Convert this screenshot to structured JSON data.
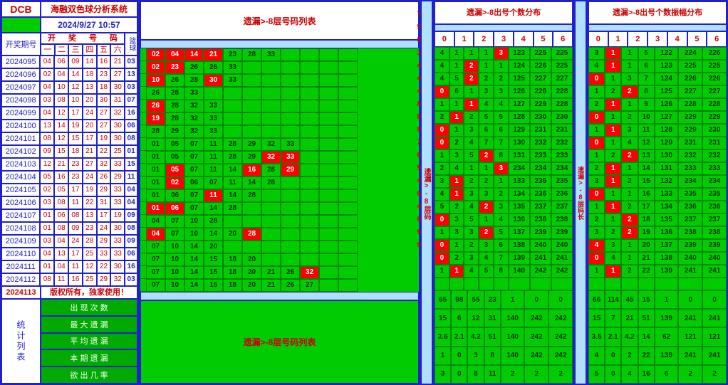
{
  "logo": "DCB",
  "title": "海融双色球分析系统",
  "timestamp": "2024/9/27 10:57",
  "period_label": "开奖期号",
  "red_header": [
    "开",
    "奖",
    "号",
    "码"
  ],
  "red_sub": [
    "一",
    "二",
    "三",
    "四",
    "五",
    "六"
  ],
  "blue_label": "篮球",
  "copyright": "版权所有，独家使用！",
  "stat_label": "统计列表",
  "stat_rows": [
    "出 现 次 数",
    "最 大 遗 漏",
    "平 均 遗 漏",
    "本 期 遗 漏",
    "欲 出 几 率"
  ],
  "main_header": "遗漏>-8层号码列表",
  "main_footer": "遗漏>-8层号码列表",
  "vstrip1": "遗漏>-8层码",
  "vstrip2": "遗漏>-8层码长",
  "cnt1_header": "遗漏>-8出号个数分布",
  "cnt2_header": "遗漏>-8出号个数振幅分布",
  "cnt_cols": [
    "0",
    "1",
    "2",
    "3",
    "4",
    "5",
    "6"
  ],
  "periods": [
    {
      "id": "2024095",
      "red": [
        "04",
        "06",
        "09",
        "14",
        "16",
        "21"
      ],
      "blue": "03"
    },
    {
      "id": "2024096",
      "red": [
        "02",
        "04",
        "14",
        "18",
        "23",
        "27"
      ],
      "blue": "13"
    },
    {
      "id": "2024097",
      "red": [
        "04",
        "10",
        "12",
        "13",
        "18",
        "30"
      ],
      "blue": "03"
    },
    {
      "id": "2024098",
      "red": [
        "03",
        "08",
        "10",
        "20",
        "30",
        "31"
      ],
      "blue": "07"
    },
    {
      "id": "2024099",
      "red": [
        "04",
        "12",
        "17",
        "24",
        "27",
        "32"
      ],
      "blue": "16"
    },
    {
      "id": "2024100",
      "red": [
        "13",
        "14",
        "19",
        "20",
        "27",
        "30"
      ],
      "blue": "06"
    },
    {
      "id": "2024101",
      "red": [
        "08",
        "12",
        "15",
        "17",
        "19",
        "30"
      ],
      "blue": "08"
    },
    {
      "id": "2024102",
      "red": [
        "09",
        "15",
        "18",
        "21",
        "22",
        "25"
      ],
      "blue": "01"
    },
    {
      "id": "2024103",
      "red": [
        "12",
        "21",
        "23",
        "27",
        "32",
        "33"
      ],
      "blue": "15"
    },
    {
      "id": "2024104",
      "red": [
        "05",
        "16",
        "23",
        "24",
        "26",
        "29"
      ],
      "blue": "11"
    },
    {
      "id": "2024105",
      "red": [
        "02",
        "05",
        "17",
        "19",
        "29",
        "33"
      ],
      "blue": "04"
    },
    {
      "id": "2024106",
      "red": [
        "03",
        "08",
        "11",
        "22",
        "31",
        "33"
      ],
      "blue": "04"
    },
    {
      "id": "2024107",
      "red": [
        "01",
        "06",
        "08",
        "13",
        "17",
        "19"
      ],
      "blue": "09"
    },
    {
      "id": "2024108",
      "red": [
        "01",
        "08",
        "09",
        "23",
        "24",
        "30"
      ],
      "blue": "08"
    },
    {
      "id": "2024109",
      "red": [
        "03",
        "04",
        "24",
        "28",
        "29",
        "33"
      ],
      "blue": "09"
    },
    {
      "id": "2024110",
      "red": [
        "04",
        "13",
        "17",
        "25",
        "33",
        "33"
      ],
      "blue": "06"
    },
    {
      "id": "2024111",
      "red": [
        "01",
        "04",
        "11",
        "12",
        "22",
        "30"
      ],
      "blue": "16"
    },
    {
      "id": "2024112",
      "red": [
        "08",
        "11",
        "16",
        "25",
        "29",
        "32"
      ],
      "blue": "03"
    },
    {
      "id": "2024113",
      "red": [
        "",
        "",
        "",
        "",
        "",
        ""
      ],
      "blue": ""
    }
  ],
  "grid_rows": [
    {
      "cells": [
        "02",
        "04",
        "14",
        "21",
        "23",
        "28",
        "33",
        "",
        "",
        "",
        ""
      ],
      "hits": [
        0,
        1,
        2,
        3
      ]
    },
    {
      "cells": [
        "02",
        "23",
        "26",
        "28",
        "33",
        "",
        "",
        "",
        "",
        "",
        ""
      ],
      "hits": [
        0,
        1
      ]
    },
    {
      "cells": [
        "10",
        "26",
        "28",
        "30",
        "33",
        "",
        "",
        "",
        "",
        "",
        ""
      ],
      "hits": [
        0,
        3
      ]
    },
    {
      "cells": [
        "26",
        "28",
        "33",
        "",
        "",
        "",
        "",
        "",
        "",
        "",
        ""
      ],
      "hits": []
    },
    {
      "cells": [
        "26",
        "28",
        "32",
        "33",
        "",
        "",
        "",
        "",
        "",
        "",
        ""
      ],
      "hits": [
        0
      ]
    },
    {
      "cells": [
        "19",
        "28",
        "32",
        "33",
        "",
        "",
        "",
        "",
        "",
        "",
        ""
      ],
      "hits": [
        0
      ]
    },
    {
      "cells": [
        "28",
        "29",
        "32",
        "33",
        "",
        "",
        "",
        "",
        "",
        "",
        ""
      ],
      "hits": []
    },
    {
      "cells": [
        "01",
        "05",
        "07",
        "11",
        "28",
        "29",
        "32",
        "33",
        "",
        "",
        ""
      ],
      "hits": []
    },
    {
      "cells": [
        "01",
        "05",
        "07",
        "11",
        "28",
        "29",
        "32",
        "33",
        "",
        "",
        ""
      ],
      "hits": [
        6,
        7
      ]
    },
    {
      "cells": [
        "01",
        "05",
        "07",
        "11",
        "14",
        "16",
        "28",
        "29",
        "",
        "",
        ""
      ],
      "hits": [
        1,
        5,
        7
      ]
    },
    {
      "cells": [
        "01",
        "02",
        "06",
        "07",
        "11",
        "14",
        "28",
        "",
        "",
        "",
        ""
      ],
      "hits": [
        1
      ]
    },
    {
      "cells": [
        "01",
        "06",
        "07",
        "11",
        "14",
        "28",
        "",
        "",
        "",
        "",
        ""
      ],
      "hits": [
        3
      ]
    },
    {
      "cells": [
        "01",
        "06",
        "07",
        "14",
        "28",
        "",
        "",
        "",
        "",
        "",
        ""
      ],
      "hits": [
        0,
        1
      ]
    },
    {
      "cells": [
        "04",
        "07",
        "10",
        "28",
        "",
        "",
        "",
        "",
        "",
        "",
        ""
      ],
      "hits": []
    },
    {
      "cells": [
        "04",
        "07",
        "10",
        "14",
        "20",
        "28",
        "",
        "",
        "",
        "",
        ""
      ],
      "hits": [
        0,
        5
      ]
    },
    {
      "cells": [
        "07",
        "10",
        "14",
        "20",
        "",
        "",
        "",
        "",
        "",
        "",
        ""
      ],
      "hits": []
    },
    {
      "cells": [
        "07",
        "10",
        "14",
        "15",
        "18",
        "20",
        "",
        "",
        "",
        "",
        ""
      ],
      "hits": []
    },
    {
      "cells": [
        "07",
        "10",
        "14",
        "15",
        "18",
        "20",
        "21",
        "26",
        "32",
        "",
        ""
      ],
      "hits": [
        8
      ]
    },
    {
      "cells": [
        "07",
        "10",
        "14",
        "15",
        "18",
        "20",
        "21",
        "26",
        "27",
        "",
        ""
      ],
      "hits": []
    }
  ],
  "vnums": [
    "7",
    "5",
    "5",
    "3",
    "4",
    "4",
    "4",
    "8",
    "8",
    "8",
    "7",
    "6",
    "5",
    "4",
    "6",
    "4",
    "6",
    "9",
    "9"
  ],
  "cnt1_rows": [
    {
      "v": [
        "4",
        "1",
        "1",
        "1",
        "3",
        "123",
        "225",
        "225"
      ],
      "h": [
        4
      ]
    },
    {
      "v": [
        "4",
        "1",
        "2",
        "1",
        "1",
        "124",
        "226",
        "225"
      ],
      "h": [
        2
      ]
    },
    {
      "v": [
        "4",
        "5",
        "2",
        "2",
        "2",
        "125",
        "227",
        "227"
      ],
      "h": [
        2
      ]
    },
    {
      "v": [
        "0",
        "6",
        "1",
        "3",
        "3",
        "126",
        "228",
        "228"
      ],
      "h": [
        0
      ]
    },
    {
      "v": [
        "1",
        "1",
        "1",
        "4",
        "4",
        "127",
        "229",
        "228"
      ],
      "h": [
        2
      ]
    },
    {
      "v": [
        "2",
        "1",
        "2",
        "5",
        "5",
        "128",
        "230",
        "230"
      ],
      "h": [
        1
      ]
    },
    {
      "v": [
        "0",
        "1",
        "3",
        "6",
        "6",
        "129",
        "231",
        "231"
      ],
      "h": [
        0
      ]
    },
    {
      "v": [
        "0",
        "2",
        "4",
        "7",
        "7",
        "130",
        "232",
        "232"
      ],
      "h": [
        0
      ]
    },
    {
      "v": [
        "1",
        "3",
        "5",
        "2",
        "8",
        "131",
        "233",
        "233"
      ],
      "h": [
        3
      ]
    },
    {
      "v": [
        "2",
        "4",
        "1",
        "1",
        "3",
        "234",
        "234",
        "234"
      ],
      "h": [
        4
      ]
    },
    {
      "v": [
        "3",
        "1",
        "2",
        "2",
        "1",
        "133",
        "235",
        "235"
      ],
      "h": [
        1
      ]
    },
    {
      "v": [
        "4",
        "1",
        "3",
        "3",
        "2",
        "134",
        "236",
        "236"
      ],
      "h": [
        1
      ]
    },
    {
      "v": [
        "5",
        "2",
        "4",
        "2",
        "3",
        "135",
        "237",
        "237"
      ],
      "h": [
        3
      ]
    },
    {
      "v": [
        "0",
        "3",
        "5",
        "1",
        "4",
        "136",
        "238",
        "238"
      ],
      "h": [
        0
      ]
    },
    {
      "v": [
        "1",
        "3",
        "3",
        "2",
        "5",
        "137",
        "239",
        "239"
      ],
      "h": [
        3
      ]
    },
    {
      "v": [
        "0",
        "1",
        "2",
        "3",
        "6",
        "138",
        "240",
        "240"
      ],
      "h": [
        0
      ]
    },
    {
      "v": [
        "0",
        "2",
        "3",
        "4",
        "7",
        "139",
        "241",
        "241"
      ],
      "h": [
        0
      ]
    },
    {
      "v": [
        "1",
        "1",
        "4",
        "5",
        "8",
        "140",
        "242",
        "242"
      ],
      "h": [
        1
      ]
    },
    {
      "v": [
        "",
        "",
        "",
        "",
        "",
        "",
        "",
        ""
      ],
      "h": []
    }
  ],
  "cnt2_rows": [
    {
      "v": [
        "3",
        "1",
        "1",
        "5",
        "122",
        "224",
        "226"
      ],
      "h": [
        1
      ]
    },
    {
      "v": [
        "4",
        "1",
        "1",
        "6",
        "123",
        "225",
        "225"
      ],
      "h": [
        1
      ]
    },
    {
      "v": [
        "0",
        "1",
        "3",
        "7",
        "124",
        "226",
        "226"
      ],
      "h": [
        0
      ]
    },
    {
      "v": [
        "1",
        "2",
        "2",
        "8",
        "125",
        "227",
        "227"
      ],
      "h": [
        2
      ]
    },
    {
      "v": [
        "2",
        "1",
        "1",
        "9",
        "126",
        "228",
        "228"
      ],
      "h": [
        1
      ]
    },
    {
      "v": [
        "0",
        "1",
        "2",
        "10",
        "127",
        "229",
        "229"
      ],
      "h": [
        0
      ]
    },
    {
      "v": [
        "1",
        "1",
        "3",
        "11",
        "128",
        "229",
        "230"
      ],
      "h": [
        1
      ]
    },
    {
      "v": [
        "0",
        "1",
        "4",
        "12",
        "129",
        "231",
        "231"
      ],
      "h": [
        0
      ]
    },
    {
      "v": [
        "1",
        "2",
        "2",
        "13",
        "130",
        "232",
        "232"
      ],
      "h": [
        2
      ]
    },
    {
      "v": [
        "2",
        "1",
        "1",
        "14",
        "131",
        "233",
        "233"
      ],
      "h": [
        1
      ]
    },
    {
      "v": [
        "3",
        "1",
        "2",
        "15",
        "132",
        "234",
        "234"
      ],
      "h": [
        1
      ]
    },
    {
      "v": [
        "0",
        "1",
        "1",
        "16",
        "133",
        "235",
        "235"
      ],
      "h": [
        0
      ]
    },
    {
      "v": [
        "1",
        "1",
        "2",
        "17",
        "134",
        "236",
        "236"
      ],
      "h": [
        1
      ]
    },
    {
      "v": [
        "2",
        "1",
        "2",
        "18",
        "135",
        "237",
        "237"
      ],
      "h": [
        2
      ]
    },
    {
      "v": [
        "3",
        "2",
        "2",
        "19",
        "136",
        "238",
        "238"
      ],
      "h": [
        2
      ]
    },
    {
      "v": [
        "4",
        "3",
        "1",
        "20",
        "137",
        "239",
        "239"
      ],
      "h": [
        0
      ]
    },
    {
      "v": [
        "0",
        "4",
        "1",
        "21",
        "138",
        "240",
        "240"
      ],
      "h": [
        0
      ]
    },
    {
      "v": [
        "1",
        "1",
        "2",
        "22",
        "139",
        "241",
        "241"
      ],
      "h": [
        1
      ]
    },
    {
      "v": [
        "",
        "",
        "",
        "",
        "",
        "",
        ""
      ],
      "h": []
    }
  ],
  "cnt1_foot": [
    [
      "65",
      "98",
      "55",
      "23",
      "1",
      "0",
      "0"
    ],
    [
      "15",
      "6",
      "12",
      "31",
      "140",
      "242",
      "242"
    ],
    [
      "3.6",
      "2.1",
      "4.2",
      "51",
      "140",
      "242",
      "242"
    ],
    [
      "1",
      "0",
      "3",
      "8",
      "140",
      "242",
      "242"
    ],
    [
      "3",
      "0",
      "8",
      "11",
      "2",
      "2",
      "2"
    ]
  ],
  "cnt2_foot": [
    [
      "66",
      "114",
      "45",
      "15",
      "1",
      "0",
      "0"
    ],
    [
      "15",
      "7",
      "21",
      "51",
      "139",
      "241",
      "241"
    ],
    [
      "3.5",
      "2.1",
      "4.2",
      "14",
      "62",
      "121",
      "121"
    ],
    [
      "4",
      "0",
      "2",
      "22",
      "139",
      "241",
      "241"
    ],
    [
      "5",
      "0",
      "4",
      "16",
      "6",
      "2",
      "2"
    ]
  ]
}
